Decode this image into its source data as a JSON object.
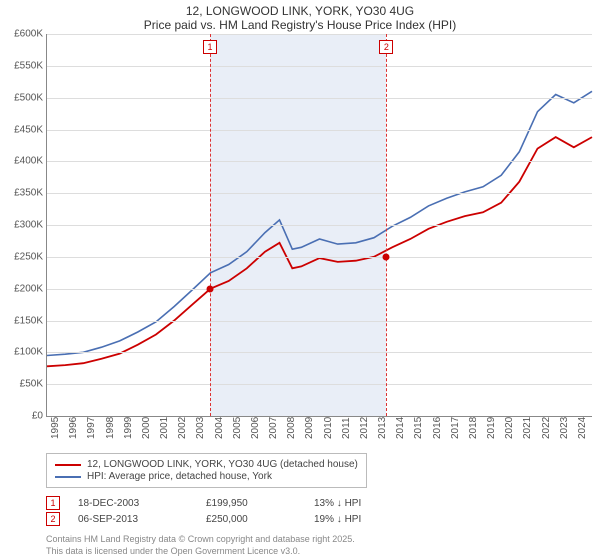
{
  "title": {
    "line1": "12, LONGWOOD LINK, YORK, YO30 4UG",
    "line2": "Price paid vs. HM Land Registry's House Price Index (HPI)"
  },
  "chart": {
    "type": "line",
    "background_color": "#ffffff",
    "grid_color": "#dddddd",
    "axis_color": "#888888",
    "label_fontsize": 10,
    "y": {
      "min": 0,
      "max": 600000,
      "step": 50000,
      "ticks": [
        "£0",
        "£50K",
        "£100K",
        "£150K",
        "£200K",
        "£250K",
        "£300K",
        "£350K",
        "£400K",
        "£450K",
        "£500K",
        "£550K",
        "£600K"
      ]
    },
    "x": {
      "min": 1995,
      "max": 2025,
      "step": 1,
      "ticks": [
        "1995",
        "1996",
        "1997",
        "1998",
        "1999",
        "2000",
        "2001",
        "2002",
        "2003",
        "2004",
        "2005",
        "2006",
        "2007",
        "2008",
        "2009",
        "2010",
        "2011",
        "2012",
        "2013",
        "2014",
        "2015",
        "2016",
        "2017",
        "2018",
        "2019",
        "2020",
        "2021",
        "2022",
        "2023",
        "2024"
      ]
    },
    "shade": {
      "from": 2003.97,
      "to": 2013.68,
      "color": "#cfd9ed",
      "opacity": 0.45
    },
    "series": [
      {
        "id": "hpi",
        "label": "HPI: Average price, detached house, York",
        "color": "#4a6fb3",
        "width": 1.6,
        "points": [
          [
            1995,
            95000
          ],
          [
            1996,
            97000
          ],
          [
            1997,
            100000
          ],
          [
            1998,
            108000
          ],
          [
            1999,
            118000
          ],
          [
            2000,
            132000
          ],
          [
            2001,
            148000
          ],
          [
            2002,
            172000
          ],
          [
            2003,
            198000
          ],
          [
            2004,
            225000
          ],
          [
            2005,
            238000
          ],
          [
            2006,
            258000
          ],
          [
            2007,
            288000
          ],
          [
            2007.8,
            308000
          ],
          [
            2008.5,
            262000
          ],
          [
            2009,
            265000
          ],
          [
            2010,
            278000
          ],
          [
            2011,
            270000
          ],
          [
            2012,
            272000
          ],
          [
            2013,
            280000
          ],
          [
            2014,
            298000
          ],
          [
            2015,
            312000
          ],
          [
            2016,
            330000
          ],
          [
            2017,
            342000
          ],
          [
            2018,
            352000
          ],
          [
            2019,
            360000
          ],
          [
            2020,
            378000
          ],
          [
            2021,
            415000
          ],
          [
            2022,
            478000
          ],
          [
            2023,
            505000
          ],
          [
            2024,
            492000
          ],
          [
            2025,
            510000
          ]
        ]
      },
      {
        "id": "property",
        "label": "12, LONGWOOD LINK, YORK, YO30 4UG (detached house)",
        "color": "#cc0000",
        "width": 1.8,
        "points": [
          [
            1995,
            78000
          ],
          [
            1996,
            80000
          ],
          [
            1997,
            83000
          ],
          [
            1998,
            90000
          ],
          [
            1999,
            98000
          ],
          [
            2000,
            112000
          ],
          [
            2001,
            128000
          ],
          [
            2002,
            150000
          ],
          [
            2003,
            175000
          ],
          [
            2004,
            200000
          ],
          [
            2005,
            212000
          ],
          [
            2006,
            232000
          ],
          [
            2007,
            258000
          ],
          [
            2007.8,
            272000
          ],
          [
            2008.5,
            232000
          ],
          [
            2009,
            235000
          ],
          [
            2010,
            248000
          ],
          [
            2011,
            242000
          ],
          [
            2012,
            244000
          ],
          [
            2013,
            250000
          ],
          [
            2014,
            265000
          ],
          [
            2015,
            278000
          ],
          [
            2016,
            294000
          ],
          [
            2017,
            305000
          ],
          [
            2018,
            314000
          ],
          [
            2019,
            320000
          ],
          [
            2020,
            335000
          ],
          [
            2021,
            368000
          ],
          [
            2022,
            420000
          ],
          [
            2023,
            438000
          ],
          [
            2024,
            422000
          ],
          [
            2025,
            438000
          ]
        ]
      }
    ],
    "markers": [
      {
        "n": "1",
        "year": 2003.97,
        "price": 199950
      },
      {
        "n": "2",
        "year": 2013.68,
        "price": 250000
      }
    ],
    "marker_line_color": "#d33333",
    "marker_box_border": "#cc0000",
    "marker_dot_color": "#cc0000"
  },
  "transactions": [
    {
      "n": "1",
      "date": "18-DEC-2003",
      "price": "£199,950",
      "delta": "13% ↓ HPI"
    },
    {
      "n": "2",
      "date": "06-SEP-2013",
      "price": "£250,000",
      "delta": "19% ↓ HPI"
    }
  ],
  "footer": {
    "line1": "Contains HM Land Registry data © Crown copyright and database right 2025.",
    "line2": "This data is licensed under the Open Government Licence v3.0."
  }
}
